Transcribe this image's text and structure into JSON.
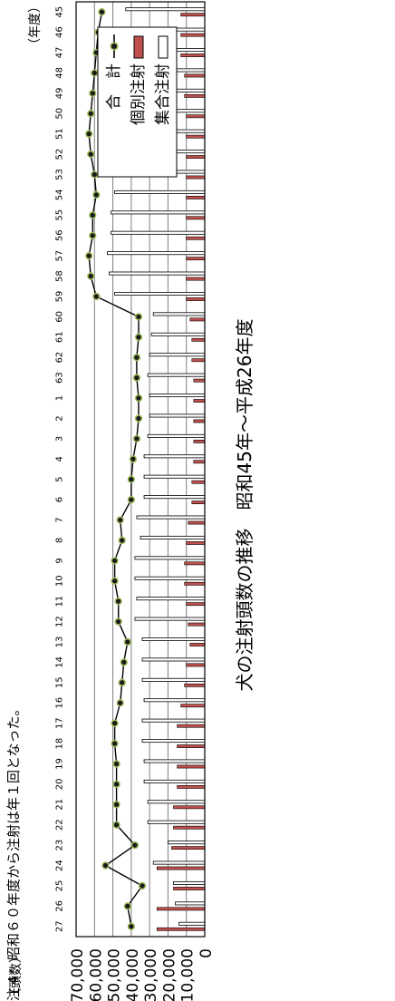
{
  "chart_data": {
    "type": "bar",
    "title": "犬の注射頭数の推移　昭和45年～平成26年度",
    "ylabel": "（頭数）",
    "xlabel": "（年度）",
    "footnote": "注４：昭和６０年度から注射は年１回となった。",
    "ylim": [
      0,
      70000
    ],
    "y_ticks": [
      "0",
      "10,000",
      "20,000",
      "30,000",
      "40,000",
      "50,000",
      "60,000",
      "70,000"
    ],
    "categories": [
      "45",
      "46",
      "47",
      "48",
      "49",
      "50",
      "51",
      "52",
      "53",
      "54",
      "55",
      "56",
      "57",
      "58",
      "59",
      "60",
      "61",
      "62",
      "63",
      "1",
      "2",
      "3",
      "4",
      "5",
      "6",
      "7",
      "8",
      "9",
      "10",
      "11",
      "12",
      "13",
      "14",
      "15",
      "16",
      "17",
      "18",
      "19",
      "20",
      "21",
      "22",
      "23",
      "24",
      "25",
      "26",
      "27"
    ],
    "series": [
      {
        "name": "集合注射",
        "type": "bar",
        "values": [
          43000,
          45000,
          46000,
          49000,
          50000,
          52000,
          53000,
          52000,
          50000,
          49000,
          51000,
          51000,
          53000,
          52000,
          49000,
          28000,
          29000,
          30000,
          31000,
          30000,
          30000,
          31000,
          33000,
          33000,
          33000,
          37000,
          35000,
          38000,
          38000,
          37000,
          38000,
          34000,
          34000,
          34000,
          33000,
          34000,
          34000,
          33000,
          33000,
          31000,
          31000,
          20000,
          28000,
          17000,
          16000,
          14000
        ]
      },
      {
        "name": "個別注射",
        "type": "bar",
        "values": [
          13000,
          13000,
          13000,
          11000,
          11000,
          10000,
          10000,
          10000,
          10000,
          10000,
          10000,
          10000,
          10000,
          10000,
          10000,
          8000,
          7000,
          7000,
          6000,
          6000,
          6000,
          6000,
          6000,
          7000,
          7000,
          9000,
          10000,
          11000,
          11000,
          10000,
          9000,
          8000,
          10000,
          11000,
          13000,
          15000,
          15000,
          15000,
          15000,
          17000,
          17000,
          18000,
          26000,
          17000,
          26000,
          26000
        ]
      },
      {
        "name": "合　計",
        "type": "line",
        "values": [
          56000,
          58000,
          59000,
          60000,
          61000,
          62000,
          63000,
          62000,
          60000,
          59000,
          61000,
          61000,
          63000,
          62000,
          59000,
          36000,
          36000,
          37000,
          37000,
          36000,
          36000,
          37000,
          39000,
          40000,
          40000,
          46000,
          45000,
          49000,
          49000,
          47000,
          47000,
          42000,
          44000,
          45000,
          46000,
          49000,
          49000,
          48000,
          48000,
          48000,
          48000,
          38000,
          54000,
          34000,
          42000,
          40000
        ]
      }
    ],
    "colors": {
      "collective": "#ffffff",
      "individual": "#c0504d",
      "line": "#000000",
      "marker": "#9bbb59",
      "grid": "#808080"
    },
    "legend_position": "top-right",
    "grid": true
  }
}
